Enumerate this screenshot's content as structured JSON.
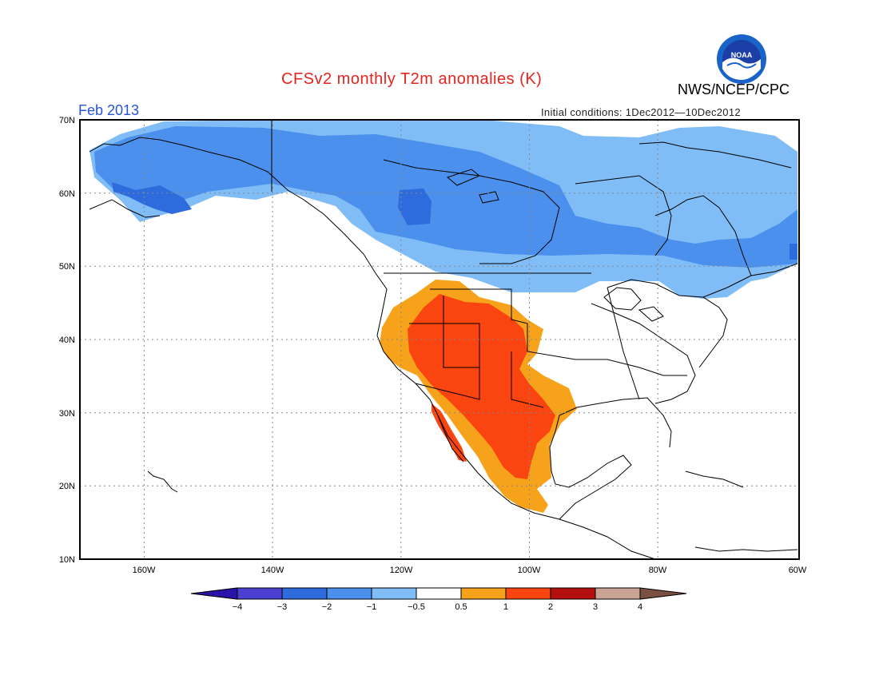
{
  "header": {
    "title": "CFSv2 monthly T2m anomalies (K)",
    "agency": "NWS/NCEP/CPC",
    "period": "Feb 2013",
    "initial_conditions": "Initial conditions: 1Dec2012—10Dec2012",
    "logo_text": "NOAA"
  },
  "map": {
    "region": "North America",
    "lon_range": [
      -172,
      -60
    ],
    "lat_range": [
      10,
      70
    ],
    "lat_labels": [
      "70N",
      "60N",
      "50N",
      "40N",
      "30N",
      "20N",
      "10N"
    ],
    "lon_labels": [
      "160W",
      "140W",
      "120W",
      "100W",
      "80W",
      "60W"
    ],
    "grid": "dotted"
  },
  "colorbar": {
    "labels": [
      "−4",
      "−3",
      "−2",
      "−1",
      "−0.5",
      "0.5",
      "1",
      "2",
      "3",
      "4"
    ],
    "colors": [
      "#2a13a8",
      "#4b3fd2",
      "#2e6bdc",
      "#4a90ec",
      "#80bcf6",
      "#ffffff",
      "#f7a21b",
      "#fa4510",
      "#b30f0f",
      "#c9a393",
      "#7a5040"
    ]
  }
}
